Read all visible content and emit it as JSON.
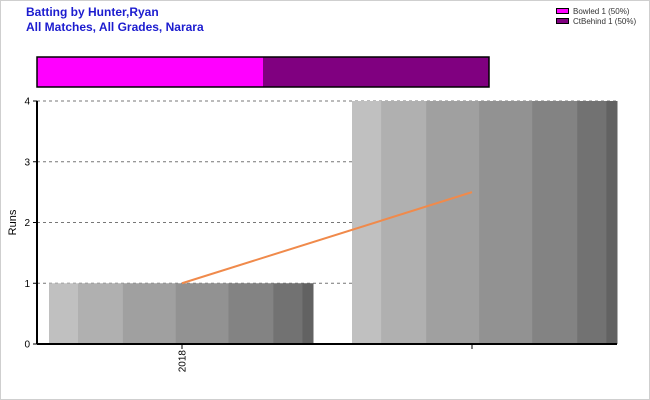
{
  "header": {
    "title_line1": "Batting by Hunter,Ryan",
    "title_line2": "All Matches, All Grades, Narara"
  },
  "legend": [
    {
      "label": "Bowled 1 (50%)",
      "color": "#ff00ff"
    },
    {
      "label": "CtBehind 1 (50%)",
      "color": "#800080"
    }
  ],
  "chart_data": {
    "type": "bar",
    "categories": [
      "2018",
      ""
    ],
    "values": [
      1,
      4
    ],
    "trend_line": [
      1,
      2.5
    ],
    "ylabel": "Runs",
    "ylim": [
      0,
      4
    ],
    "yticks": [
      0,
      1,
      2,
      3,
      4
    ],
    "grid": true,
    "legend_position": "top-right",
    "dismissal_share": [
      {
        "name": "Bowled",
        "value": 1,
        "color": "#ff00ff"
      },
      {
        "name": "CtBehind",
        "value": 1,
        "color": "#800080"
      }
    ],
    "trend_color": "#f08a4b"
  }
}
